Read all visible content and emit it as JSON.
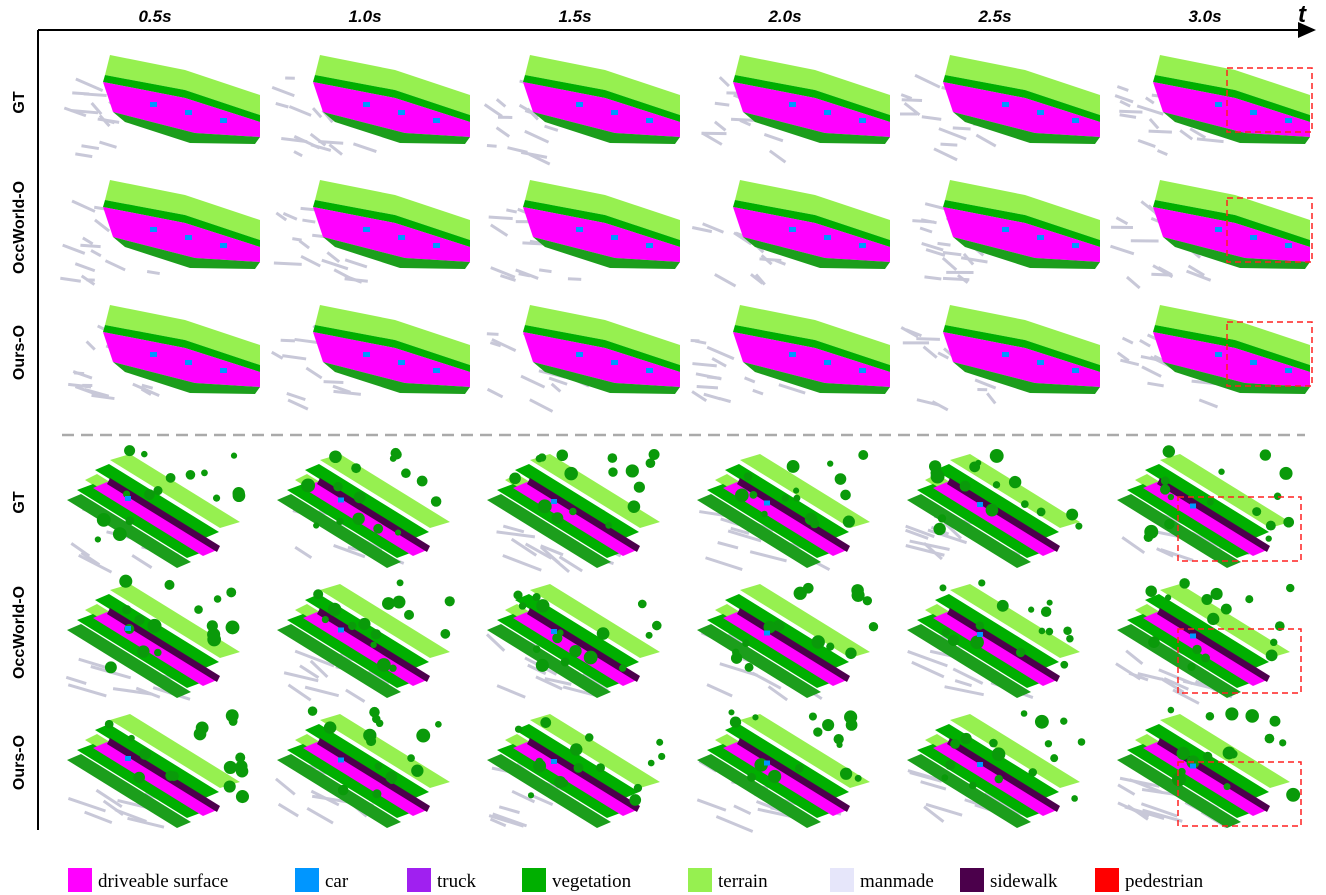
{
  "header": {
    "axis_label": "t",
    "times": [
      "0.5s",
      "1.0s",
      "1.5s",
      "2.0s",
      "2.5s",
      "3.0s"
    ]
  },
  "rows": [
    "GT",
    "OccWorld-O",
    "Ours-O",
    "GT",
    "OccWorld-O",
    "Ours-O"
  ],
  "legend": [
    {
      "label": "driveable surface",
      "color": "#ff00ff"
    },
    {
      "label": "car",
      "color": "#0096ff"
    },
    {
      "label": "truck",
      "color": "#a020f0"
    },
    {
      "label": "vegetation",
      "color": "#00af00"
    },
    {
      "label": "terrain",
      "color": "#96f050"
    },
    {
      "label": "manmade",
      "color": "#e6e6fa"
    },
    {
      "label": "sidewalk",
      "color": "#4b004b"
    },
    {
      "label": "pedestrian",
      "color": "#ff0000"
    }
  ]
}
